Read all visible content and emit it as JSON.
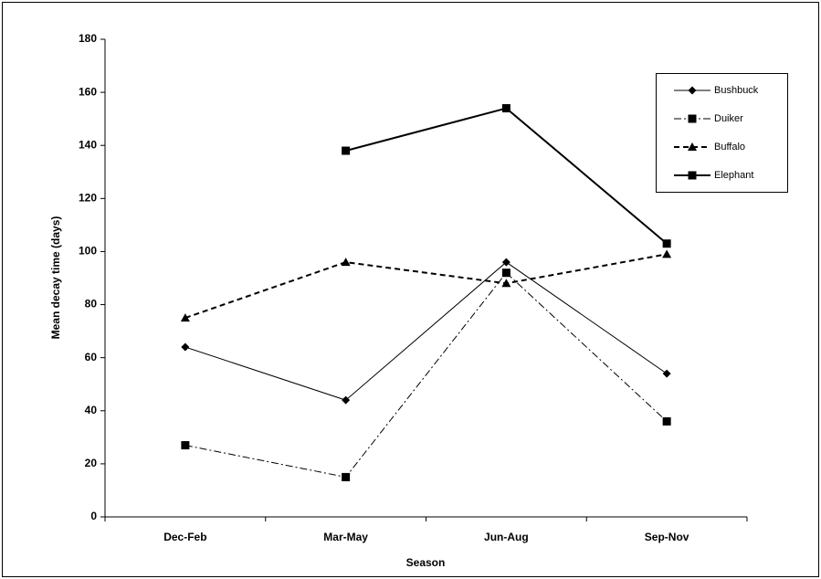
{
  "chart_data": {
    "type": "line",
    "x_label": "Season",
    "y_label": "Mean decay time (days)",
    "categories": [
      "Dec-Feb",
      "Mar-May",
      "Jun-Aug",
      "Sep-Nov"
    ],
    "series": [
      {
        "name": "Bushbuck",
        "color": "#000000",
        "marker": "diamond",
        "dash": "solid",
        "width": 1,
        "values": [
          64,
          44,
          96,
          54
        ]
      },
      {
        "name": "Duiker",
        "color": "#000000",
        "marker": "square",
        "dash": "dashdot",
        "width": 1,
        "values": [
          27,
          15,
          92,
          36
        ]
      },
      {
        "name": "Buffalo",
        "color": "#000000",
        "marker": "triangle",
        "dash": "dashed",
        "width": 2,
        "values": [
          75,
          96,
          88,
          99
        ]
      },
      {
        "name": "Elephant",
        "color": "#000000",
        "marker": "square",
        "dash": "solid",
        "width": 2,
        "values": [
          null,
          138,
          154,
          103
        ]
      }
    ],
    "ylim": [
      0,
      180
    ],
    "yticks": [
      0,
      20,
      40,
      60,
      80,
      100,
      120,
      140,
      160,
      180
    ],
    "legend": "right"
  }
}
